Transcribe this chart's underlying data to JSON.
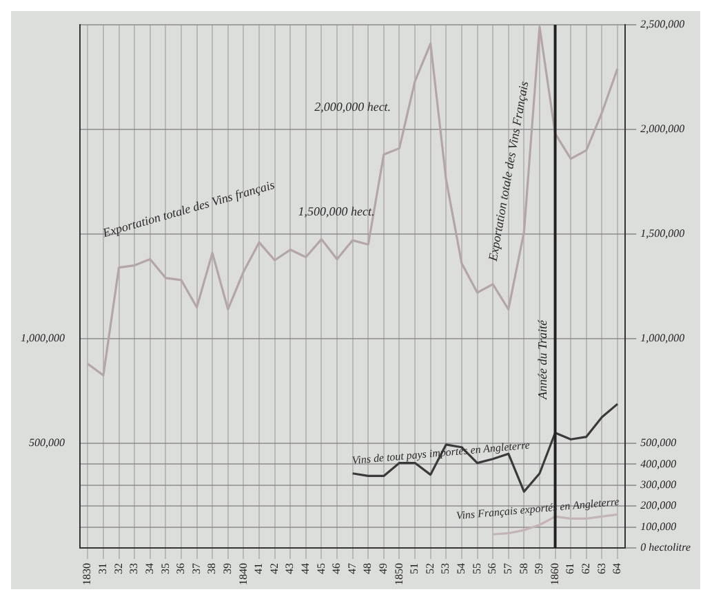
{
  "chart_data": {
    "type": "line",
    "categories": [
      "1830",
      "31",
      "32",
      "33",
      "34",
      "35",
      "36",
      "37",
      "38",
      "39",
      "1840",
      "41",
      "42",
      "43",
      "44",
      "45",
      "46",
      "47",
      "48",
      "49",
      "1850",
      "51",
      "52",
      "53",
      "54",
      "55",
      "56",
      "57",
      "58",
      "59",
      "1860",
      "61",
      "62",
      "63",
      "64"
    ],
    "series": [
      {
        "color": "#b3a6a4",
        "values": [
          880000,
          825000,
          1340000,
          1350000,
          1380000,
          1290000,
          1280000,
          1150000,
          1410000,
          1140000,
          1320000,
          1460000,
          1375000,
          1425000,
          1390000,
          1475000,
          1380000,
          1470000,
          1450000,
          1880000,
          1910000,
          2230000,
          2410000,
          1760000,
          1360000,
          1220000,
          1260000,
          1140000,
          1510000,
          2490000,
          1980000,
          1860000,
          1900000,
          2080000,
          2290000
        ]
      },
      {
        "name": "Vins de tout pays importés en Angleterre",
        "color": "#3a3a3a",
        "values": [
          null,
          null,
          null,
          null,
          null,
          null,
          null,
          null,
          null,
          null,
          null,
          null,
          null,
          null,
          null,
          null,
          null,
          356000,
          344000,
          344000,
          406000,
          406000,
          350000,
          494000,
          481000,
          406000,
          425000,
          450000,
          269000,
          356000,
          550000,
          519000,
          531000,
          625000,
          688000
        ]
      },
      {
        "name": "Vins Français exportés en Angleterre",
        "color": "#c4b4b4",
        "values": [
          null,
          null,
          null,
          null,
          null,
          null,
          null,
          null,
          null,
          null,
          null,
          null,
          null,
          null,
          null,
          null,
          null,
          null,
          null,
          null,
          null,
          null,
          null,
          null,
          null,
          null,
          65000,
          70000,
          85000,
          110000,
          150000,
          140000,
          140000,
          150000,
          160000
        ]
      }
    ],
    "ylim": [
      0,
      2500000
    ],
    "yticks": [
      {
        "value": 0,
        "label": "0 hectolitre"
      },
      {
        "value": 100000,
        "label": "100,000"
      },
      {
        "value": 200000,
        "label": "200,000"
      },
      {
        "value": 300000,
        "label": "300,000"
      },
      {
        "value": 400000,
        "label": "400,000"
      },
      {
        "value": 500000,
        "label": "500,000"
      },
      {
        "value": 1000000,
        "label": "1,000,000"
      },
      {
        "value": 1500000,
        "label": "1,500,000"
      },
      {
        "value": 2000000,
        "label": "2,000,000"
      },
      {
        "value": 2500000,
        "label": "2,500,000"
      }
    ],
    "y2lim": [
      0,
      2500000
    ],
    "y2ticks": [
      {
        "value": 500000,
        "label": "500,000"
      },
      {
        "value": 1000000,
        "label": "1,000,000"
      }
    ],
    "annotations": [
      "Exportation totale des Vins français",
      "1,500,000 hect.",
      "2,000,000 hect.",
      "Exportation totale des Vins Français"
    ],
    "ref_lines": [
      {
        "axis": "x",
        "value": "1860",
        "label": "Année du Traité",
        "color": "#222222"
      }
    ],
    "grid": true,
    "legend": false,
    "marker": "none",
    "line_style": "solid"
  }
}
